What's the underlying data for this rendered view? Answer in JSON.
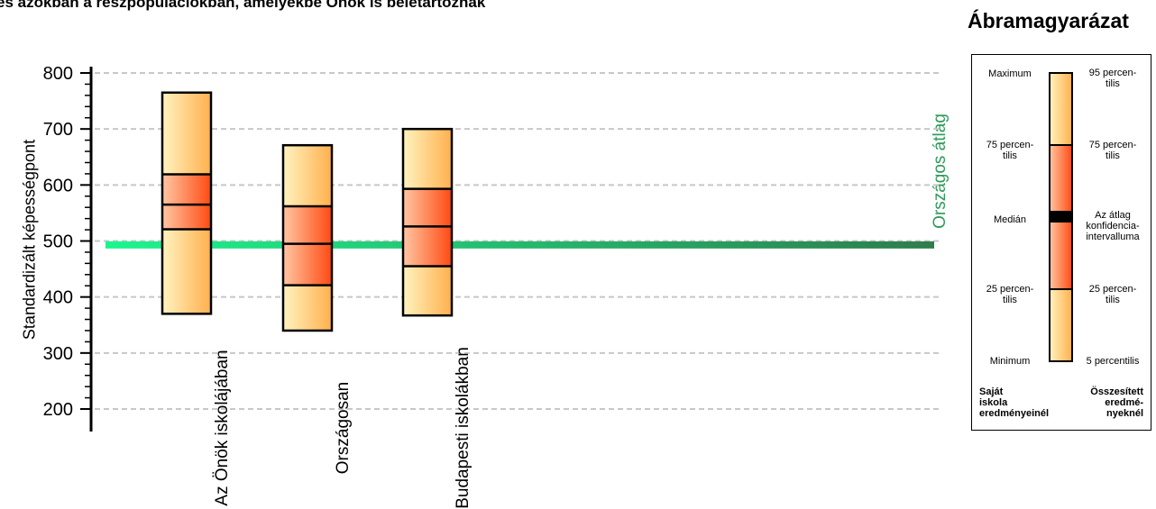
{
  "title": "és azokban a részpopulációkban, amelyekbe Önök is beletartoznak",
  "chart_data": {
    "type": "box",
    "ylabel": "Standardizált képességpont",
    "ylim": [
      200,
      800
    ],
    "yticks": [
      200,
      300,
      400,
      500,
      600,
      700,
      800
    ],
    "grid": true,
    "categories": [
      "Az Önök iskolájában",
      "Országosan",
      "Budapesti iskolákban"
    ],
    "boxes": [
      {
        "name": "Az Önök iskolájában",
        "p5": 370,
        "p25": 521,
        "median": 565,
        "p75": 619,
        "p95": 765
      },
      {
        "name": "Országosan",
        "p5": 340,
        "p25": 421,
        "median": 495,
        "p75": 562,
        "p95": 671
      },
      {
        "name": "Budapesti iskolákban",
        "p5": 367,
        "p25": 455,
        "median": 526,
        "p75": 593,
        "p95": 700
      }
    ],
    "reference_line": {
      "label": "Országos átlag",
      "value": 493,
      "color": "#2e9a5a"
    }
  },
  "legend": {
    "title": "Ábramagyarázat",
    "left_labels": {
      "maximum": "Maximum",
      "p75_a": "75 percen-",
      "p75_b": "tilis",
      "median": "Medián",
      "p25_a": "25 percen-",
      "p25_b": "tilis",
      "minimum": "Minimum"
    },
    "right_labels": {
      "p95_a": "95 percen-",
      "p95_b": "tilis",
      "p75_a": "75 percen-",
      "p75_b": "tilis",
      "ci_a": "Az átlag",
      "ci_b": "konfidencia-",
      "ci_c": "intervalluma",
      "p25_a": "25 percen-",
      "p25_b": "tilis",
      "p5": "5 percentilis"
    },
    "footer_left": [
      "Saját",
      "iskola",
      "eredményeinél"
    ],
    "footer_right": [
      "Összesített",
      "eredmé-",
      "nyeknél"
    ]
  },
  "colors": {
    "grid": "#c8c8c8",
    "avg_line_start": "#1cf58f",
    "avg_line_end": "#2e7d4c",
    "box_light": "#fff3c0",
    "box_mid": "#ffc07a",
    "box_dark": "#ff5a1e"
  }
}
